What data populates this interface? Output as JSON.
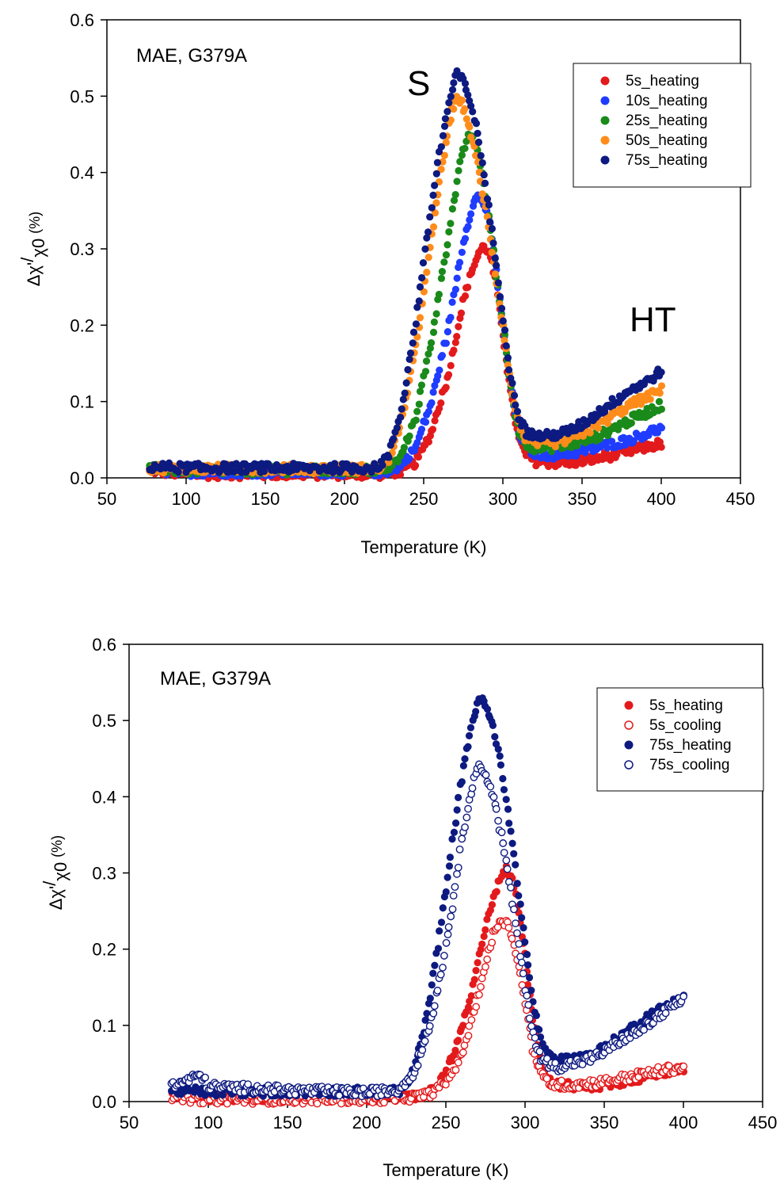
{
  "chart_data": [
    {
      "type": "scatter",
      "annotation": "MAE, G379A",
      "peak_labels": [
        {
          "text": "S",
          "x": 270,
          "y": 0.52
        },
        {
          "text": "HT",
          "x": 379,
          "y": 0.195
        }
      ],
      "xlabel": "Temperature (K)",
      "ylabel_parts": {
        "main": "Δχ'",
        "slash": "/",
        "sub": "χ0",
        "unit": "(%)"
      },
      "xlim": [
        50,
        450
      ],
      "ylim": [
        0,
        0.6
      ],
      "xticks": [
        50,
        100,
        150,
        200,
        250,
        300,
        350,
        400,
        450
      ],
      "yticks": [
        0.0,
        0.1,
        0.2,
        0.3,
        0.4,
        0.5,
        0.6
      ],
      "legend_position": "top-right",
      "series": [
        {
          "name": "5s_heating",
          "color": "#e31a1c",
          "marker": "filled",
          "x": [
            77,
            100,
            150,
            200,
            225,
            235,
            245,
            255,
            265,
            270,
            275,
            280,
            285,
            288,
            292,
            296,
            300,
            305,
            310,
            315,
            320,
            330,
            340,
            350,
            360,
            370,
            380,
            390,
            400
          ],
          "y": [
            0.01,
            0.005,
            0.005,
            0.005,
            0.005,
            0.008,
            0.02,
            0.06,
            0.13,
            0.18,
            0.23,
            0.27,
            0.295,
            0.305,
            0.29,
            0.25,
            0.19,
            0.11,
            0.05,
            0.03,
            0.022,
            0.02,
            0.02,
            0.022,
            0.026,
            0.03,
            0.035,
            0.04,
            0.045
          ]
        },
        {
          "name": "10s_heating",
          "color": "#1f3cff",
          "marker": "filled",
          "x": [
            77,
            100,
            150,
            200,
            225,
            235,
            245,
            255,
            265,
            270,
            275,
            280,
            284,
            288,
            292,
            296,
            300,
            305,
            310,
            315,
            320,
            330,
            340,
            350,
            360,
            370,
            380,
            390,
            400
          ],
          "y": [
            0.01,
            0.008,
            0.008,
            0.008,
            0.008,
            0.015,
            0.04,
            0.1,
            0.19,
            0.25,
            0.31,
            0.35,
            0.37,
            0.36,
            0.33,
            0.27,
            0.2,
            0.12,
            0.06,
            0.04,
            0.033,
            0.03,
            0.032,
            0.035,
            0.04,
            0.045,
            0.05,
            0.058,
            0.065
          ]
        },
        {
          "name": "25s_heating",
          "color": "#1a8a1a",
          "marker": "filled",
          "x": [
            77,
            100,
            150,
            200,
            225,
            235,
            245,
            255,
            262,
            268,
            273,
            278,
            282,
            286,
            290,
            295,
            300,
            305,
            310,
            315,
            320,
            330,
            340,
            350,
            360,
            370,
            380,
            390,
            400
          ],
          "y": [
            0.012,
            0.01,
            0.01,
            0.01,
            0.01,
            0.025,
            0.08,
            0.18,
            0.27,
            0.35,
            0.41,
            0.45,
            0.44,
            0.41,
            0.36,
            0.28,
            0.2,
            0.12,
            0.06,
            0.045,
            0.04,
            0.04,
            0.043,
            0.048,
            0.055,
            0.065,
            0.075,
            0.085,
            0.095
          ]
        },
        {
          "name": "50s_heating",
          "color": "#ff8c1a",
          "marker": "filled",
          "x": [
            77,
            100,
            150,
            200,
            222,
            230,
            240,
            250,
            258,
            264,
            268,
            272,
            276,
            280,
            285,
            290,
            295,
            300,
            305,
            310,
            315,
            320,
            330,
            340,
            350,
            360,
            370,
            380,
            390,
            400
          ],
          "y": [
            0.013,
            0.012,
            0.012,
            0.012,
            0.012,
            0.03,
            0.11,
            0.24,
            0.36,
            0.44,
            0.48,
            0.5,
            0.48,
            0.45,
            0.4,
            0.34,
            0.27,
            0.2,
            0.12,
            0.07,
            0.05,
            0.045,
            0.045,
            0.05,
            0.058,
            0.07,
            0.082,
            0.095,
            0.105,
            0.115
          ]
        },
        {
          "name": "75s_heating",
          "color": "#0d1a80",
          "marker": "filled",
          "x": [
            77,
            100,
            150,
            200,
            220,
            228,
            236,
            244,
            252,
            258,
            263,
            267,
            271,
            275,
            280,
            285,
            290,
            295,
            300,
            305,
            310,
            315,
            320,
            330,
            340,
            350,
            360,
            370,
            380,
            390,
            400
          ],
          "y": [
            0.015,
            0.013,
            0.013,
            0.013,
            0.013,
            0.03,
            0.09,
            0.19,
            0.31,
            0.4,
            0.46,
            0.5,
            0.53,
            0.52,
            0.49,
            0.44,
            0.37,
            0.29,
            0.21,
            0.13,
            0.08,
            0.06,
            0.055,
            0.055,
            0.06,
            0.07,
            0.085,
            0.1,
            0.115,
            0.125,
            0.14
          ]
        }
      ]
    },
    {
      "type": "scatter",
      "annotation": "MAE, G379A",
      "xlabel": "Temperature (K)",
      "ylabel_parts": {
        "main": "Δχ'",
        "slash": "/",
        "sub": "χ0",
        "unit": "(%)"
      },
      "xlim": [
        50,
        450
      ],
      "ylim": [
        0,
        0.6
      ],
      "xticks": [
        50,
        100,
        150,
        200,
        250,
        300,
        350,
        400,
        450
      ],
      "yticks": [
        0.0,
        0.1,
        0.2,
        0.3,
        0.4,
        0.5,
        0.6
      ],
      "legend_position": "top-right",
      "series": [
        {
          "name": "5s_heating",
          "color": "#e31a1c",
          "marker": "filled",
          "x": [
            77,
            100,
            150,
            200,
            225,
            235,
            245,
            255,
            265,
            270,
            275,
            280,
            285,
            288,
            292,
            296,
            300,
            305,
            310,
            315,
            320,
            330,
            340,
            350,
            360,
            370,
            380,
            390,
            400
          ],
          "y": [
            0.01,
            0.005,
            0.005,
            0.005,
            0.005,
            0.008,
            0.02,
            0.06,
            0.13,
            0.18,
            0.23,
            0.27,
            0.295,
            0.305,
            0.29,
            0.25,
            0.19,
            0.11,
            0.05,
            0.03,
            0.022,
            0.02,
            0.02,
            0.022,
            0.026,
            0.03,
            0.035,
            0.04,
            0.045
          ]
        },
        {
          "name": "5s_cooling",
          "color": "#e31a1c",
          "marker": "open",
          "x": [
            77,
            100,
            150,
            200,
            225,
            240,
            250,
            260,
            268,
            274,
            280,
            285,
            290,
            295,
            300,
            305,
            310,
            315,
            320,
            330,
            340,
            350,
            360,
            370,
            380,
            390,
            400
          ],
          "y": [
            0.005,
            0.003,
            0.003,
            0.003,
            0.005,
            0.01,
            0.025,
            0.06,
            0.12,
            0.17,
            0.22,
            0.24,
            0.23,
            0.19,
            0.13,
            0.07,
            0.035,
            0.025,
            0.022,
            0.022,
            0.024,
            0.026,
            0.03,
            0.034,
            0.038,
            0.042,
            0.045
          ]
        },
        {
          "name": "75s_heating",
          "color": "#0d1a80",
          "marker": "filled",
          "x": [
            77,
            100,
            150,
            200,
            220,
            228,
            236,
            244,
            252,
            258,
            263,
            267,
            271,
            275,
            280,
            285,
            290,
            295,
            300,
            305,
            310,
            315,
            320,
            330,
            340,
            350,
            360,
            370,
            380,
            390,
            400
          ],
          "y": [
            0.015,
            0.013,
            0.013,
            0.013,
            0.013,
            0.03,
            0.09,
            0.19,
            0.31,
            0.4,
            0.46,
            0.5,
            0.53,
            0.52,
            0.49,
            0.44,
            0.37,
            0.29,
            0.21,
            0.13,
            0.08,
            0.06,
            0.055,
            0.055,
            0.06,
            0.07,
            0.085,
            0.1,
            0.115,
            0.125,
            0.14
          ]
        },
        {
          "name": "75s_cooling",
          "color": "#0d1a80",
          "marker": "open",
          "x": [
            77,
            95,
            100,
            150,
            200,
            220,
            230,
            240,
            248,
            255,
            260,
            265,
            270,
            275,
            280,
            285,
            290,
            295,
            300,
            305,
            310,
            320,
            330,
            340,
            350,
            360,
            370,
            380,
            390,
            400
          ],
          "y": [
            0.02,
            0.035,
            0.02,
            0.015,
            0.012,
            0.015,
            0.04,
            0.1,
            0.18,
            0.27,
            0.34,
            0.4,
            0.44,
            0.43,
            0.4,
            0.35,
            0.29,
            0.22,
            0.15,
            0.09,
            0.055,
            0.045,
            0.05,
            0.055,
            0.065,
            0.08,
            0.09,
            0.105,
            0.12,
            0.135
          ]
        }
      ]
    }
  ]
}
